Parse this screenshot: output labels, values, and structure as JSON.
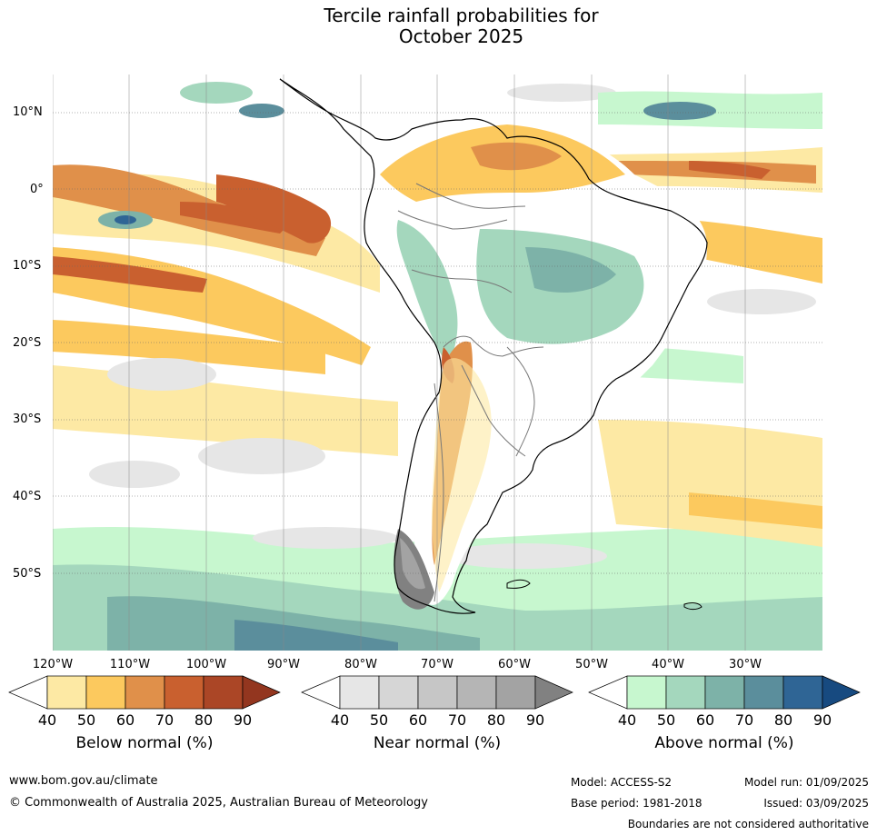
{
  "title": {
    "line1": "Tercile rainfall probabilities for",
    "line2": "October 2025"
  },
  "map": {
    "region": "South America",
    "lat_labels": [
      "10°N",
      "0°",
      "10°S",
      "20°S",
      "30°S",
      "40°S",
      "50°S"
    ],
    "lon_labels": [
      "120°W",
      "110°W",
      "100°W",
      "90°W",
      "80°W",
      "70°W",
      "60°W",
      "50°W",
      "40°W",
      "30°W"
    ],
    "gridlines": true
  },
  "legend": {
    "below": {
      "title": "Below normal (%)",
      "ticks": [
        "40",
        "50",
        "60",
        "70",
        "80",
        "90"
      ],
      "colors": [
        "#ffffff",
        "#fde9a4",
        "#fcc95e",
        "#e0904a",
        "#c9602f",
        "#ab4626",
        "#93361f"
      ]
    },
    "near": {
      "title": "Near normal (%)",
      "ticks": [
        "40",
        "50",
        "60",
        "70",
        "80",
        "90"
      ],
      "colors": [
        "#ffffff",
        "#e6e6e6",
        "#d6d6d6",
        "#c6c6c6",
        "#b5b5b5",
        "#a3a3a3",
        "#818181"
      ]
    },
    "above": {
      "title": "Above normal (%)",
      "ticks": [
        "40",
        "50",
        "60",
        "70",
        "80",
        "90"
      ],
      "colors": [
        "#ffffff",
        "#c7f7cf",
        "#a4d7bd",
        "#7db2a8",
        "#5b8e9c",
        "#2f6595",
        "#174a80"
      ]
    }
  },
  "footer": {
    "website": "www.bom.gov.au/climate",
    "copyright": "© Commonwealth of Australia 2025, Australian Bureau of Meteorology",
    "model": "Model: ACCESS-S2",
    "model_run": "Model run: 01/09/2025",
    "base_period": "Base period: 1981-2018",
    "issued": "Issued: 03/09/2025",
    "disclaimer": "Boundaries are not considered authoritative"
  }
}
